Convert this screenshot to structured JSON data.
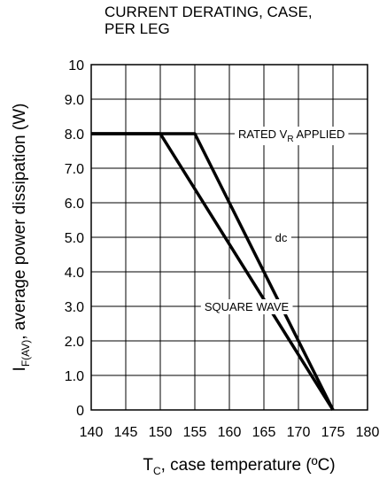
{
  "chart_data": {
    "type": "line",
    "title_lines": [
      "CURRENT DERATING, CASE,",
      "PER LEG"
    ],
    "xlim": [
      140,
      180
    ],
    "ylim": [
      0,
      10
    ],
    "x_ticks": [
      "140",
      "145",
      "150",
      "155",
      "160",
      "165",
      "170",
      "175",
      "180"
    ],
    "y_ticks": [
      "0",
      "1.0",
      "2.0",
      "3.0",
      "4.0",
      "5.0",
      "6.0",
      "7.0",
      "8.0",
      "9.0",
      "10"
    ],
    "xlabel": {
      "main": "T",
      "sub": "C",
      "rest": ", case temperature (ºC)"
    },
    "ylabel": {
      "main": "I",
      "sub": "F(AV)",
      "rest": ", average power dissipation (W)"
    },
    "grid": true,
    "series": [
      {
        "name": "dc",
        "x": [
          140,
          155,
          175
        ],
        "y": [
          8.0,
          8.0,
          0
        ]
      },
      {
        "name": "SQUARE WAVE",
        "x": [
          140,
          150,
          175
        ],
        "y": [
          8.0,
          8.0,
          0
        ]
      }
    ],
    "annotations": [
      {
        "text_main": "RATED V",
        "text_sub": "R",
        "text_rest": " APPLIED",
        "x": 169,
        "y": 8.0
      },
      {
        "text_main": "dc",
        "text_sub": "",
        "text_rest": "",
        "x": 167.5,
        "y": 5.0
      },
      {
        "text_main": "SQUARE WAVE",
        "text_sub": "",
        "text_rest": "",
        "x": 162.5,
        "y": 3.0
      }
    ]
  }
}
